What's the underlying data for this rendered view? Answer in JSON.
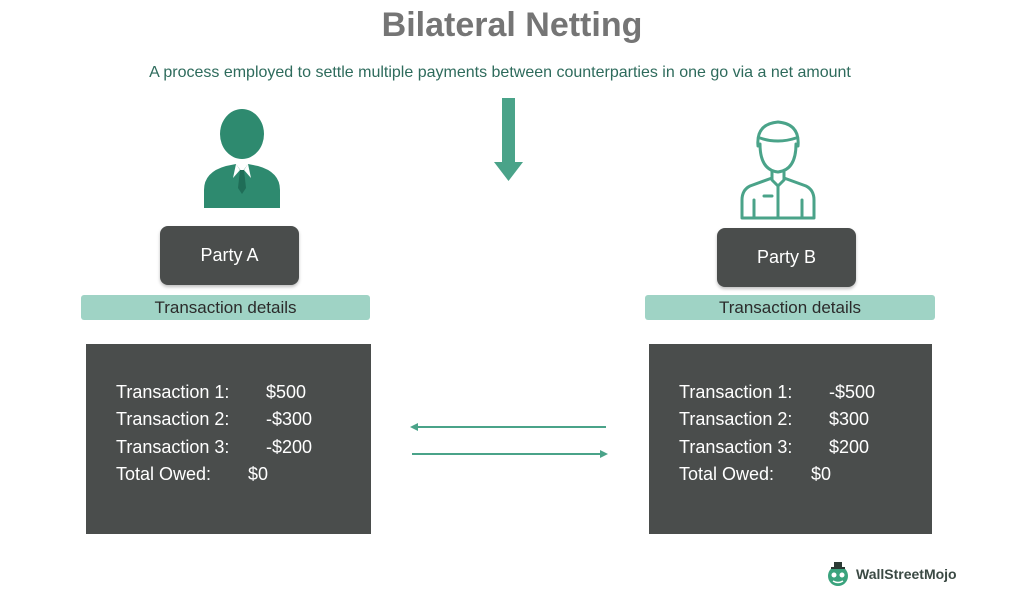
{
  "title": "Bilateral Netting",
  "subtitle": "A process employed to settle multiple payments between counterparties in one go via a net amount",
  "accent_color": "#4aa389",
  "panel_color": "#4a4d4c",
  "label_color": "#9fd3c5",
  "parties": [
    {
      "name": "Party A",
      "icon": "businessman-icon",
      "details_label": "Transaction details",
      "rows": [
        {
          "label": "Transaction 1:",
          "value": "$500"
        },
        {
          "label": "Transaction 2:",
          "value": "-$300"
        },
        {
          "label": "Transaction 3:",
          "value": "-$200"
        },
        {
          "label": "Total Owed:",
          "value": "$0"
        }
      ]
    },
    {
      "name": "Party B",
      "icon": "person-outline-icon",
      "details_label": "Transaction details",
      "rows": [
        {
          "label": "Transaction 1:",
          "value": "-$500"
        },
        {
          "label": "Transaction 2:",
          "value": "$300"
        },
        {
          "label": "Transaction 3:",
          "value": "$200"
        },
        {
          "label": "Total Owed:",
          "value": "$0"
        }
      ]
    }
  ],
  "logo": {
    "text": "WallStreetMojo",
    "icon": "wallstreetmojo-logo-icon"
  }
}
